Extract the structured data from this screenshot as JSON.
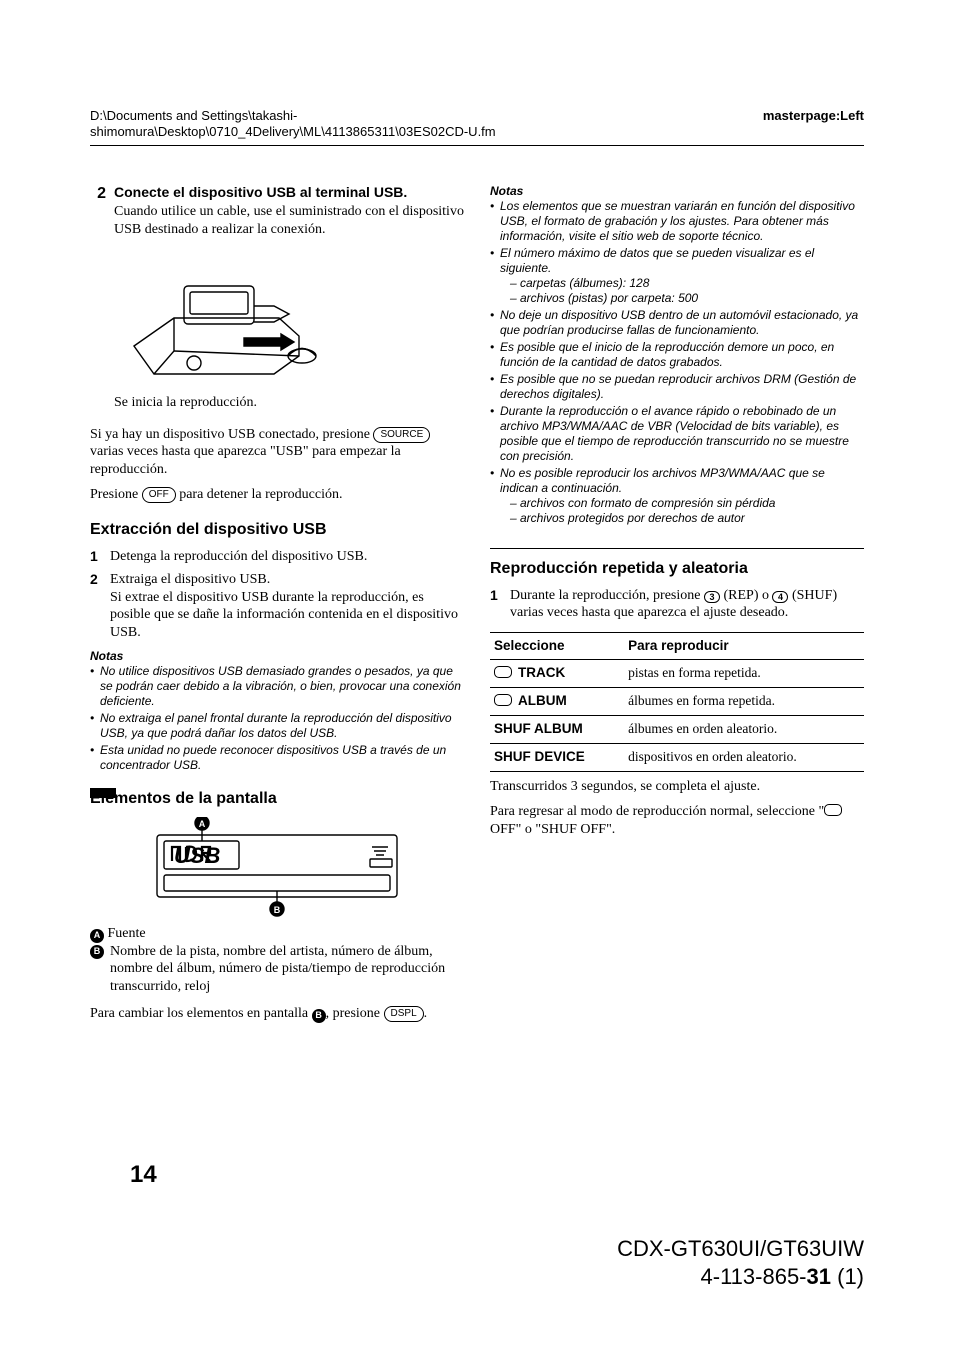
{
  "header": {
    "path_line1": "D:\\Documents and Settings\\takashi-",
    "path_line2": "shimomura\\Desktop\\0710_4Delivery\\ML\\4113865311\\03ES02CD-U.fm",
    "masterpage": "masterpage:Left"
  },
  "left": {
    "step2": {
      "num": "2",
      "title": "Conecte el dispositivo USB al terminal USB.",
      "body": "Cuando utilice un cable, use el suministrado con el dispositivo USB destinado a realizar la conexión."
    },
    "caption": "Se inicia la reproducción.",
    "para_source_1": "Si ya hay un dispositivo USB conectado, presione ",
    "pill_source": "SOURCE",
    "para_source_2": " varias veces hasta que aparezca \"USB\" para empezar la reproducción.",
    "para_off_1": "Presione ",
    "pill_off": "OFF",
    "para_off_2": " para detener la reproducción.",
    "h_extract": "Extracción del dispositivo USB",
    "extract_steps": [
      "Detenga la reproducción del dispositivo USB.",
      "Extraiga el dispositivo USB.\nSi extrae el dispositivo USB durante la reproducción, es posible que se dañe la información contenida en el dispositivo USB."
    ],
    "notes_title": "Notas",
    "notes": [
      "No utilice dispositivos USB demasiado grandes o pesados, ya que se podrán caer debido a la vibración, o bien, provocar una conexión deficiente.",
      "No extraiga el panel frontal durante la reproducción del dispositivo USB, ya que podrá dañar los datos del USB.",
      "Esta unidad no puede reconocer dispositivos USB a través de un concentrador USB."
    ],
    "h_display": "Elementos de la pantalla",
    "legend": {
      "a": "Fuente",
      "b": "Nombre de la pista, nombre del artista, número de álbum, nombre del álbum, número de pista/tiempo de reproducción transcurrido, reloj"
    },
    "change_1": "Para cambiar los elementos en pantalla ",
    "change_2": ", presione ",
    "pill_dspl": "DSPL",
    "change_3": "."
  },
  "right": {
    "notes_title": "Notas",
    "notes": [
      "Los elementos que se muestran variarán en función del dispositivo USB, el formato de grabación y los ajustes. Para obtener más información, visite el sitio web de soporte técnico.",
      "El número máximo de datos que se pueden visualizar es el siguiente.",
      "No deje un dispositivo USB dentro de un automóvil estacionado, ya que podrían producirse fallas de funcionamiento.",
      "Es posible que el inicio de la reproducción demore un poco, en función de la cantidad de datos grabados.",
      "Es posible que no se puedan reproducir archivos DRM (Gestión de derechos digitales).",
      "Durante la reproducción o el avance rápido o rebobinado de un archivo MP3/WMA/AAC de VBR (Velocidad de bits variable), es posible que el tiempo de reproducción transcurrido no se muestre con precisión.",
      "No es posible reproducir los archivos MP3/WMA/AAC que se indican a continuación."
    ],
    "note_sub_max": [
      "carpetas (álbumes): 128",
      "archivos (pistas) por carpeta: 500"
    ],
    "note_sub_last": [
      "archivos con formato de compresión sin pérdida",
      "archivos protegidos por derechos de autor"
    ],
    "h_repeat": "Reproducción repetida y aleatoria",
    "repeat_step_1a": "Durante la reproducción, presione ",
    "repeat_btn_3": "3",
    "repeat_step_1b": " (REP) o ",
    "repeat_btn_4": "4",
    "repeat_step_1c": " (SHUF) varias veces hasta que aparezca el ajuste deseado.",
    "table": {
      "head": [
        "Seleccione",
        "Para reproducir"
      ],
      "rows": [
        [
          "TRACK",
          "pistas en forma repetida."
        ],
        [
          "ALBUM",
          "álbumes en forma repetida."
        ],
        [
          "SHUF ALBUM",
          "álbumes en orden aleatorio."
        ],
        [
          "SHUF DEVICE",
          "dispositivos en orden aleatorio."
        ]
      ],
      "loop_rows": [
        true,
        true,
        false,
        false
      ]
    },
    "after_table": "Transcurridos 3 segundos, se completa el ajuste.",
    "return_1": "Para regresar al modo de reproducción normal, seleccione \"",
    "return_off": " OFF\" o \"SHUF OFF\"."
  },
  "page_number": "14",
  "footer": {
    "model": "CDX-GT630UI/GT63UIW",
    "doc_a": "4-113-865-",
    "doc_b": "31",
    "doc_c": " (1)"
  },
  "colors": {
    "text": "#000000",
    "bg": "#ffffff"
  }
}
